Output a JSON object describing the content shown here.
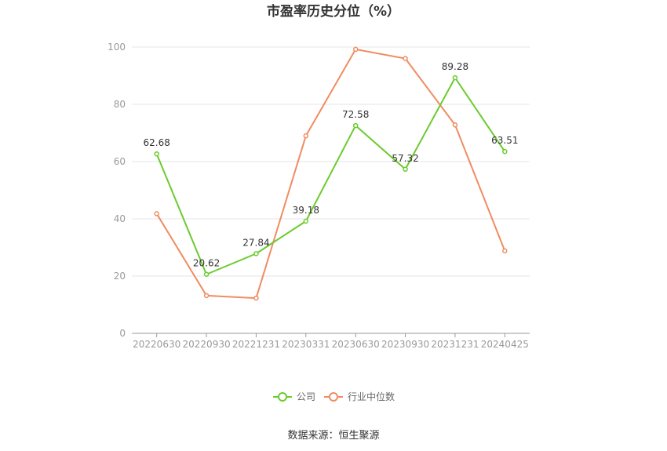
{
  "chart_data": {
    "type": "line",
    "title": "市盈率历史分位（%）",
    "categories": [
      "20220630",
      "20220930",
      "20221231",
      "20230331",
      "20230630",
      "20230930",
      "20231231",
      "20240425"
    ],
    "ylim": [
      0,
      100
    ],
    "yticks": [
      0,
      20,
      40,
      60,
      80,
      100
    ],
    "grid": true,
    "legend_position": "bottom",
    "series": [
      {
        "name": "公司",
        "color": "#6bcb2f",
        "values": [
          62.68,
          20.62,
          27.84,
          39.18,
          72.58,
          57.32,
          89.28,
          63.51
        ],
        "labels": [
          "62.68",
          "20.62",
          "27.84",
          "39.18",
          "72.58",
          "57.32",
          "89.28",
          "63.51"
        ]
      },
      {
        "name": "行业中位数",
        "color": "#f08c62",
        "values": [
          41.8,
          13.2,
          12.3,
          69.0,
          99.2,
          96.0,
          72.8,
          28.8
        ]
      }
    ]
  },
  "source_text": "数据来源：恒生聚源"
}
